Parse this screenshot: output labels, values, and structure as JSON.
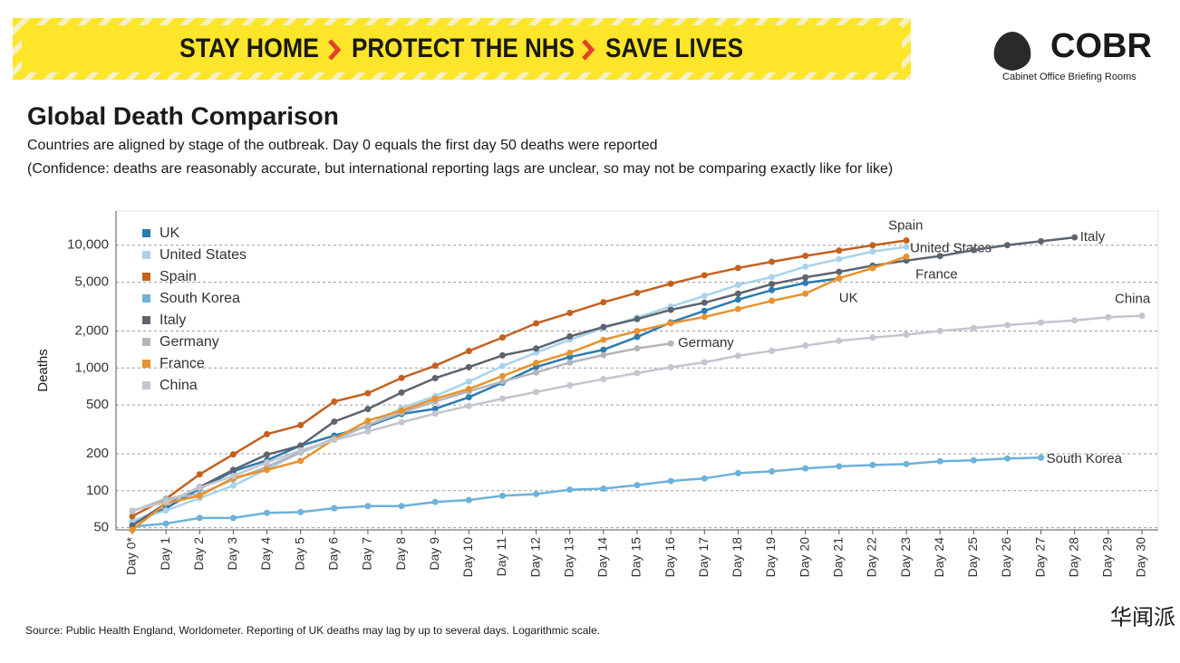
{
  "banner": {
    "items": [
      "STAY HOME",
      "PROTECT THE NHS",
      "SAVE LIVES"
    ]
  },
  "logo": {
    "name": "COBR",
    "subtitle": "Cabinet Office Briefing Rooms"
  },
  "watermark": "华闻派",
  "chart_data": {
    "type": "line",
    "title": "Global Death Comparison",
    "subtitle": "Countries are aligned by stage of the outbreak. Day 0 equals the first day 50 deaths were reported",
    "note": "(Confidence: deaths are reasonably accurate, but international reporting lags are unclear, so may not be comparing exactly like for like)",
    "source": "Source: Public Health England, Worldometer. Reporting of UK deaths may lag by up to several days. Logarithmic scale.",
    "ylabel": "Deaths",
    "log_scale": true,
    "grid": true,
    "legend": "top-left",
    "ylim": [
      48,
      19000
    ],
    "yticks": [
      50,
      100,
      200,
      500,
      {
        "value": 1000,
        "label": "1,000"
      },
      {
        "value": 2000,
        "label": "2,000"
      },
      {
        "value": 5000,
        "label": "5,000"
      },
      {
        "value": 10000,
        "label": "10,000"
      }
    ],
    "categories": [
      "Day 0*",
      "Day 1",
      "Day 2",
      "Day 3",
      "Day 4",
      "Day 5",
      "Day 6",
      "Day 7",
      "Day 8",
      "Day 9",
      "Day 10",
      "Day 11",
      "Day 12",
      "Day 13",
      "Day 14",
      "Day 15",
      "Day 16",
      "Day 17",
      "Day 18",
      "Day 19",
      "Day 20",
      "Day 21",
      "Day 22",
      "Day 23",
      "Day 24",
      "Day 25",
      "Day 26",
      "Day 27",
      "Day 28",
      "Day 29",
      "Day 30"
    ],
    "series": [
      {
        "name": "UK",
        "color": "#2b7bb1",
        "values": [
          56,
          72,
          104,
          144,
          177,
          233,
          281,
          335,
          422,
          465,
          578,
          759,
          1019,
          1228,
          1408,
          1789,
          2352,
          2921,
          3605,
          4313,
          4934,
          5373,
          null,
          null,
          null,
          null,
          null,
          null,
          null,
          null,
          null
        ]
      },
      {
        "name": "United States",
        "color": "#a9d2ec",
        "values": [
          57,
          69,
          87,
          110,
          150,
          205,
          260,
          340,
          471,
          590,
          775,
          1037,
          1334,
          1701,
          2112,
          2584,
          3168,
          3868,
          4757,
          5500,
          6700,
          7700,
          8900,
          9700,
          null,
          null,
          null,
          null,
          null,
          null,
          null
        ]
      },
      {
        "name": "Spain",
        "color": "#c5601f",
        "values": [
          62,
          86,
          136,
          198,
          289,
          342,
          533,
          623,
          830,
          1043,
          1375,
          1772,
          2311,
          2808,
          3434,
          4089,
          4858,
          5690,
          6528,
          7340,
          8189,
          9053,
          10003,
          10935,
          null,
          null,
          null,
          null,
          null,
          null,
          null
        ]
      },
      {
        "name": "South Korea",
        "color": "#6cb2da",
        "values": [
          51,
          54,
          60,
          60,
          66,
          67,
          72,
          75,
          75,
          81,
          84,
          91,
          94,
          102,
          104,
          111,
          120,
          126,
          139,
          144,
          152,
          158,
          162,
          165,
          174,
          177,
          183,
          186,
          null,
          null,
          null
        ]
      },
      {
        "name": "Italy",
        "color": "#5d646e",
        "values": [
          52,
          79,
          107,
          148,
          197,
          233,
          366,
          463,
          631,
          827,
          1016,
          1266,
          1441,
          1809,
          2158,
          2503,
          2978,
          3405,
          4032,
          4825,
          5476,
          6077,
          6820,
          7503,
          8165,
          9134,
          10023,
          10779,
          11591,
          null,
          null
        ]
      },
      {
        "name": "Germany",
        "color": "#b2b5ba",
        "values": [
          68,
          86,
          94,
          123,
          157,
          206,
          267,
          342,
          433,
          533,
          645,
          775,
          920,
          1107,
          1275,
          1444,
          1584,
          null,
          null,
          null,
          null,
          null,
          null,
          null,
          null,
          null,
          null,
          null,
          null,
          null,
          null
        ]
      },
      {
        "name": "France",
        "color": "#e8922d",
        "values": [
          48,
          79,
          91,
          127,
          148,
          175,
          264,
          372,
          450,
          562,
          674,
          860,
          1100,
          1331,
          1696,
          1995,
          2314,
          2606,
          3024,
          3523,
          4032,
          5387,
          6507,
          8078,
          null,
          null,
          null,
          null,
          null,
          null,
          null
        ]
      },
      {
        "name": "China",
        "color": "#c3c5cf",
        "values": [
          69,
          81,
          106,
          132,
          170,
          213,
          259,
          304,
          361,
          425,
          490,
          563,
          637,
          723,
          812,
          910,
          1016,
          1113,
          1259,
          1380,
          1523,
          1665,
          1770,
          1868,
          2004,
          2118,
          2236,
          2345,
          2442,
          2592,
          2663
        ]
      }
    ]
  }
}
